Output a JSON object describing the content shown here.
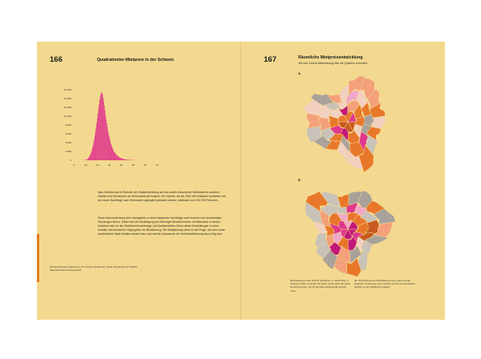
{
  "left_page": {
    "number": "166",
    "title": "Quadratmeter-Mietpreis in der Schweiz",
    "body": [
      "dass Gebiete sind im Rahmen der Stadtentwicklung und des damit verbundenen Wettbewerbs zwischen Städten und Gemeinden um Steuerzahlende begehrt. Die Gebiete, die bis 2040 mit Gebäuden verdichtet und der neuen Nachfrage nach Wohnraum zugänglich gemacht werden, umfassen rund 100 000 Personen.",
      "Diese Nachverdichtung wird unweigerlich zu einer steigenden Nachfrage nach teureren und hochwertigen Wohnungen führen. Dabei wird die Verdrängung der bisherigen Bewohnerinnen und Bewohner in andere Quartiere oder an den Stadtrand beschleunigt. Auf Quartiersebene führen diese Entwicklungen zu einer sozialen und räumlichen Segregation der Bevölkerung. Die Stadtplanung steht vor der Frage, wie eine sozial durchmischte Stadt erhalten werden kann und welche Instrumente der Wohnbauförderung dazu nötig sind."
    ],
    "caption": "166 Quadratmeter-Mietpreis in der Schweiz (Verteilung), Quelle: Bundesamt für Statistik, Mietpreisstrukturerhebung 2012"
  },
  "histogram": {
    "chart_data": {
      "type": "bar",
      "x_ticks": [
        "0",
        "10",
        "20",
        "30",
        "40",
        "50",
        "60",
        "70"
      ],
      "y_ticks": [
        "0",
        "2 000",
        "4 000",
        "6 000",
        "8 000",
        "10 000",
        "12 000",
        "14 000",
        "16 000"
      ],
      "xlim": [
        0,
        70
      ],
      "ylim": [
        0,
        16000
      ],
      "bin_width": 0.5,
      "values": [
        0,
        0,
        0,
        0,
        0,
        0,
        0,
        0,
        0,
        0,
        0,
        0,
        0,
        0,
        0,
        0,
        10,
        20,
        40,
        60,
        100,
        150,
        230,
        340,
        480,
        660,
        880,
        1150,
        1470,
        1850,
        2300,
        2800,
        3400,
        4050,
        4800,
        5600,
        6500,
        7450,
        8450,
        9500,
        10600,
        11700,
        12750,
        13700,
        14500,
        15100,
        15400,
        15300,
        14900,
        14200,
        13300,
        12300,
        11300,
        10300,
        9350,
        8450,
        7600,
        6800,
        6100,
        5450,
        4850,
        4300,
        3800,
        3350,
        2950,
        2600,
        2300,
        2050,
        1820,
        1620,
        1440,
        1280,
        1140,
        1010,
        900,
        800,
        710,
        630,
        560,
        500,
        445,
        395,
        350,
        310,
        275,
        245,
        220,
        195,
        175,
        155,
        138,
        122,
        108,
        96,
        86,
        76,
        68,
        61,
        55,
        49,
        44,
        40,
        36,
        32,
        29,
        26,
        23,
        21,
        19,
        17,
        15,
        14,
        12,
        11,
        10,
        9,
        8,
        7,
        6,
        5,
        4,
        3,
        2,
        2,
        1,
        1,
        0,
        0,
        0,
        0,
        0,
        0,
        0,
        0,
        0,
        0,
        0,
        0,
        0,
        0,
        0,
        0,
        0
      ],
      "bar_color": "#e0368c"
    }
  },
  "right_page": {
    "number": "167",
    "title": "Räumliche Mietpreisentwicklung",
    "subtitle": "Wie sich Zürichs Mietbelastung über die Quartiere verschiebt",
    "map_a_label": "a",
    "map_b_label": "b",
    "caption_left": "Mietbelastung in den Zürcher Quartieren. a: Stand 2012, b: Prognose 2040. Je dunkler die Farbe, desto höher der Anteil des Einkommens, der für die Miete aufgewendet werden muss.",
    "caption_right": "Die Verschiebung der Mietbelastung zeigt, dass zentrale Quartiere zunehmend teurer werden und sich die günstigeren Gebiete an den Stadtrand verlagern.",
    "colors": {
      "grey": "#a9a29a",
      "light_grey": "#c9c2b8",
      "pale": "#f2d0c0",
      "salmon": "#f4a07a",
      "orange": "#e8772a",
      "dark_orange": "#c85a1e",
      "pink": "#e0368c",
      "magenta": "#c2187a",
      "light_pink": "#f0a8c8"
    }
  }
}
